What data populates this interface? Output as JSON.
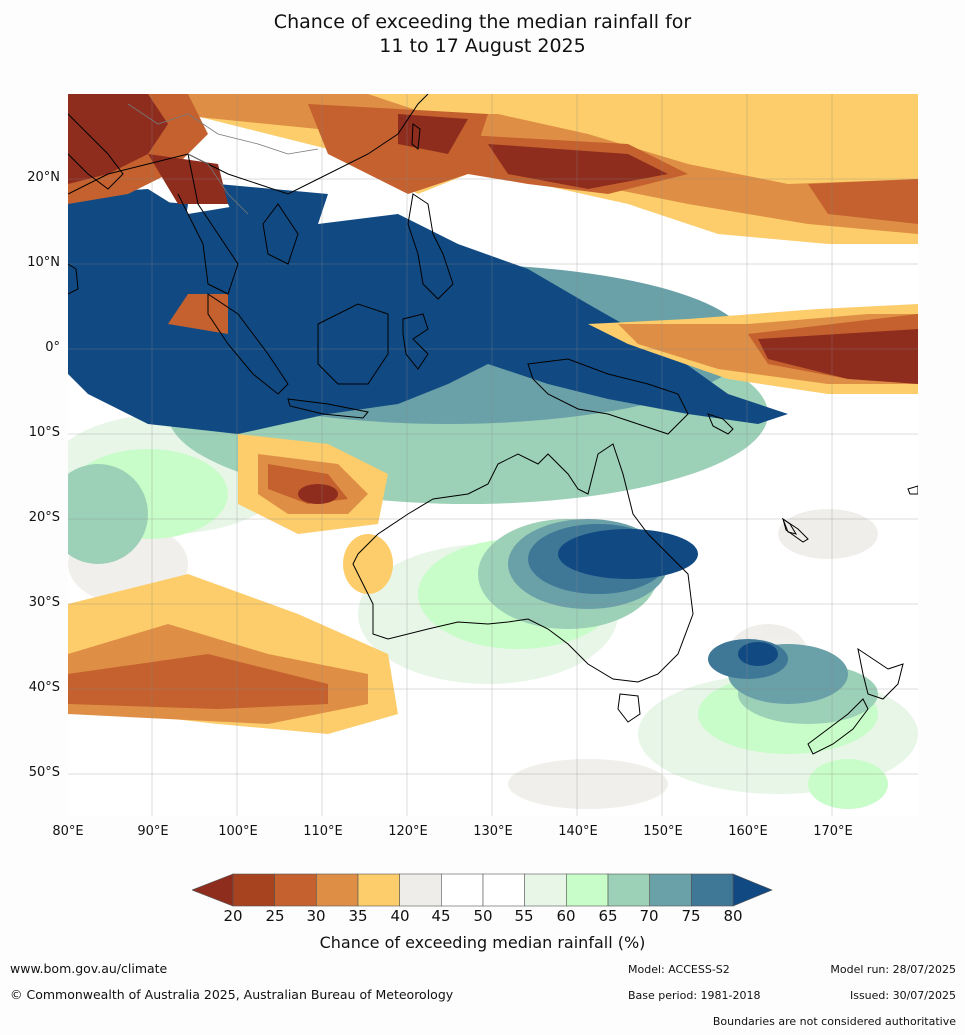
{
  "title": {
    "line1": "Chance of exceeding the median rainfall for",
    "line2": "11 to 17 August 2025"
  },
  "map": {
    "lat_labels": [
      "20°N",
      "10°N",
      "0°",
      "10°S",
      "20°S",
      "30°S",
      "40°S",
      "50°S"
    ],
    "lon_labels": [
      "80°E",
      "90°E",
      "100°E",
      "110°E",
      "120°E",
      "130°E",
      "140°E",
      "150°E",
      "160°E",
      "170°E"
    ]
  },
  "colorbar": {
    "ticks": [
      "20",
      "25",
      "30",
      "35",
      "40",
      "45",
      "50",
      "55",
      "60",
      "65",
      "70",
      "75",
      "80"
    ],
    "colors": [
      "#8e2d1e",
      "#a8431f",
      "#c4612e",
      "#de8f45",
      "#fccd6a",
      "#eeede9",
      "#ffffff",
      "#ffffff",
      "#e8f6e8",
      "#c8fcc8",
      "#9cd0b7",
      "#6aa0a8",
      "#3f7797",
      "#114a82"
    ],
    "label": "Chance of exceeding median rainfall (%)"
  },
  "footer": {
    "website": "www.bom.gov.au/climate",
    "copyright": "© Commonwealth of Australia 2025, Australian Bureau of Meteorology",
    "model": "Model: ACCESS-S2",
    "base_period": "Base period: 1981-2018",
    "model_run": "Model run: 28/07/2025",
    "issued": "Issued: 30/07/2025",
    "disclaimer": "Boundaries are not considered authoritative"
  }
}
